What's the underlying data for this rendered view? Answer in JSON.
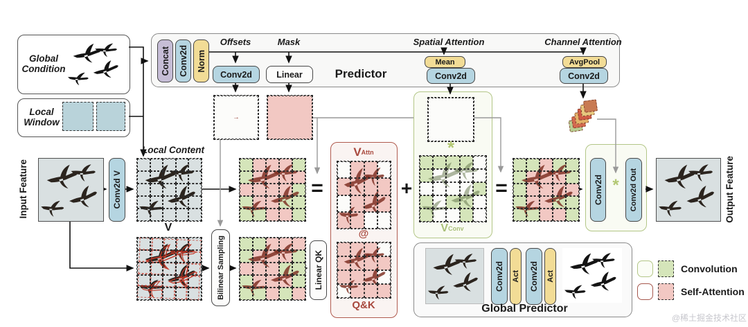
{
  "global_condition": {
    "label": "Global Condition"
  },
  "local_window": {
    "label": "Local Window"
  },
  "predictor": {
    "title": "Predictor",
    "stack": [
      "Concat",
      "Conv2d",
      "Norm"
    ],
    "offsets": {
      "label": "Offsets",
      "op": "Conv2d"
    },
    "mask": {
      "label": "Mask",
      "op": "Linear"
    },
    "spatial": {
      "label": "Spatial Attention",
      "op1": "Mean",
      "op2": "Conv2d"
    },
    "channel": {
      "label": "Channel Attention",
      "op1": "AvgPool",
      "op2": "Conv2d"
    }
  },
  "input": {
    "label": "Input Feature"
  },
  "conv2d_v": "Conv2d V",
  "local_content": {
    "label": "Local Content",
    "v": "V"
  },
  "bilinear": "Bilinear Sampling",
  "linear_qk": "Linear QK",
  "equation": {
    "eq1": "=",
    "plus": "+",
    "eq2": "="
  },
  "v_attn": {
    "main": "V",
    "sub": "Attn",
    "at": "@",
    "qk": "Q&K"
  },
  "v_conv": {
    "main": "V",
    "sub": "Conv",
    "star": "*"
  },
  "conv_out": {
    "conv": "Conv2d",
    "star": "*",
    "conv_out": "Conv2d Out"
  },
  "output": {
    "label": "Output Feature"
  },
  "global_predictor": {
    "title": "Global Predictor",
    "ops": [
      "Conv2d",
      "Act",
      "Conv2d",
      "Act"
    ]
  },
  "legend": {
    "convolution": "Convolution",
    "self_attention": "Self-Attention"
  },
  "watermark": "@稀土掘金技术社区",
  "colors": {
    "pill_blue": "#b5d5e1",
    "pill_yellow": "#f2dc96",
    "pill_purple": "#c6bdd6",
    "green_accent": "#b3c687",
    "red_accent": "#b05a4e",
    "cell_green": "#d5e5ba",
    "cell_pink": "#f2c8c3",
    "cell_blue": "#b9d3da",
    "bird_maroon": "#7b2c20",
    "wire_gray": "#999999"
  },
  "grid_palette": {
    "G": "#d5e5ba",
    "P": "#f2c8c3",
    "B": "#b9d3da",
    "W": "#fcfcfa",
    "w": "#f3f1ed",
    "T": "transparent"
  },
  "grids": {
    "lwA": {
      "cells": [
        "PPPP",
        "wwww",
        "BBBB"
      ],
      "border": "#333"
    },
    "lwB": {
      "cells": [
        "BBBB",
        "BBBB",
        "BBBB"
      ],
      "border": "#333"
    },
    "offsets": {
      "cells": [
        "WWWWW",
        "WWWWW",
        "WWWWW",
        "WWWWW",
        "WWWWW"
      ],
      "border": "#2b2b2b",
      "arrows": [
        "↖←↑↗↑",
        "↑↗↖↑↗",
        "←↗↓↘→",
        "↖↑→↓↘",
        "←↙↓↘→"
      ],
      "arrow_color": "#8f2f23"
    },
    "mask": {
      "cells": [
        "GGGPP",
        "GPPPP",
        "GPPPG",
        "GPPPG",
        "GPGPP"
      ],
      "border": "#2b2b2b"
    },
    "spatial": {
      "cells": [
        "GGGGW",
        "GWWWG",
        "WWWWW",
        "WGWGW",
        "GWGGW"
      ],
      "border": "#2b2b2b"
    },
    "lines5": {
      "cells": [
        "TTTTT",
        "TTTTT",
        "TTTTT",
        "TTTTT",
        "TTTTT"
      ],
      "border": "#2b2b2b"
    },
    "lines4": {
      "cells": [
        "TTTT",
        "TTTT",
        "TTTT",
        "TTTT"
      ],
      "border": "#2b2b2b"
    },
    "lines5r": {
      "cells": [
        "TTTTT",
        "TTTTT",
        "TTTTT",
        "TTTTT",
        "TTTTT"
      ],
      "border": "rgba(195,45,30,0.75)"
    },
    "mask_r1": {
      "cells": [
        "GPPPG",
        "GPPPP",
        "PPPPG",
        "GPPGG",
        "GGPPG"
      ]
    },
    "mask_r2": {
      "cells": [
        "GGPPP",
        "GPPPG",
        "PPPGG",
        "GPPPG",
        "GGPGP"
      ]
    },
    "va1": {
      "cells": [
        "WPPW",
        "PPPP",
        "WPPP",
        "PPWW"
      ]
    },
    "va2": {
      "cells": [
        "PPPW",
        "PPPP",
        "PPPW",
        "WPPP"
      ]
    },
    "vconv_cells": {
      "cells": [
        "GGGGW",
        "GWWWW",
        "WWWWG",
        "GWGGW",
        "GWWGW"
      ]
    },
    "final_cells": {
      "cells": [
        "GGPGG",
        "GPPPG",
        "GPPPP",
        "GPPGG",
        "GGPPG"
      ]
    }
  },
  "scenes": {
    "photo": {
      "bg": "#d9e0e1",
      "bird": "#2b241e"
    },
    "silhouette": {
      "bg": "#ffffff",
      "bird": "#141414"
    },
    "maroon": {
      "bg": "transparent",
      "bird": "#7b2c20",
      "opacity": 0.82
    },
    "green_faint": {
      "bg": "transparent",
      "bird": "#5d7044",
      "opacity": 0.5
    },
    "red_outline": {
      "bg": "transparent",
      "bird": "#c23b2a",
      "outline": true
    }
  },
  "channel_icon": {
    "colors": [
      "#b8cc90",
      "#d3694f",
      "#e3b268",
      "#cf5a45",
      "#e6c87e",
      "#c87a52"
    ]
  }
}
